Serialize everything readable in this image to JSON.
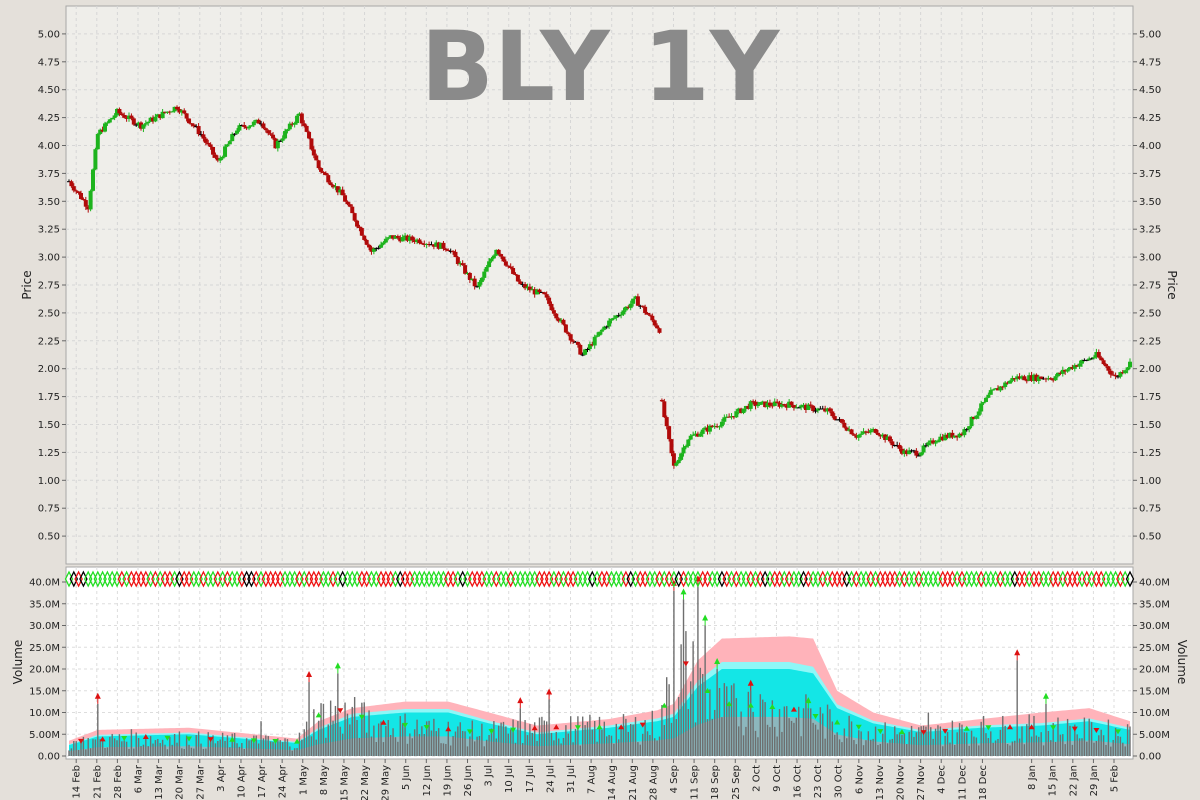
{
  "chart_data": {
    "type": "candlestick",
    "title": "BLY 1Y",
    "price_panel": {
      "ylabel": "Price",
      "ylim": [
        0.25,
        5.25
      ],
      "yticks": [
        "0.50",
        "0.75",
        "1.00",
        "1.25",
        "1.50",
        "1.75",
        "2.00",
        "2.25",
        "2.50",
        "2.75",
        "3.00",
        "3.25",
        "3.50",
        "3.75",
        "4.00",
        "4.25",
        "4.50",
        "4.75",
        "5.00"
      ],
      "grid": true
    },
    "volume_panel": {
      "ylabel": "Volume",
      "ylim": [
        0,
        40
      ],
      "yticks": [
        "0.00",
        "5.00M",
        "10.0M",
        "15.0M",
        "20.0M",
        "25.0M",
        "30.0M",
        "35.0M",
        "40.0M"
      ],
      "grid": true
    },
    "xticks": [
      "14 Feb",
      "21 Feb",
      "28 Feb",
      "6 Mar",
      "13 Mar",
      "20 Mar",
      "27 Mar",
      "3 Apr",
      "10 Apr",
      "17 Apr",
      "24 Apr",
      "1 May",
      "8 May",
      "15 May",
      "22 May",
      "29 May",
      "5 Jun",
      "12 Jun",
      "19 Jun",
      "26 Jun",
      "3 Jul",
      "10 Jul",
      "17 Jul",
      "24 Jul",
      "31 Jul",
      "7 Aug",
      "14 Aug",
      "21 Aug",
      "28 Aug",
      "4 Sep",
      "11 Sep",
      "18 Sep",
      "25 Sep",
      "2 Oct",
      "9 Oct",
      "16 Oct",
      "23 Oct",
      "30 Oct",
      "6 Nov",
      "13 Nov",
      "20 Nov",
      "27 Nov",
      "4 Dec",
      "11 Dec",
      "18 Dec",
      "8 Jan",
      "15 Jan",
      "22 Jan",
      "29 Jan",
      "5 Feb"
    ],
    "price_keypoints": [
      [
        0,
        3.68
      ],
      [
        8,
        3.45
      ],
      [
        12,
        4.1
      ],
      [
        20,
        4.3
      ],
      [
        30,
        4.18
      ],
      [
        45,
        4.35
      ],
      [
        55,
        4.1
      ],
      [
        62,
        3.85
      ],
      [
        70,
        4.15
      ],
      [
        80,
        4.22
      ],
      [
        86,
        4.0
      ],
      [
        96,
        4.28
      ],
      [
        104,
        3.8
      ],
      [
        114,
        3.55
      ],
      [
        126,
        3.05
      ],
      [
        134,
        3.18
      ],
      [
        146,
        3.15
      ],
      [
        158,
        3.08
      ],
      [
        170,
        2.72
      ],
      [
        178,
        3.08
      ],
      [
        188,
        2.75
      ],
      [
        198,
        2.65
      ],
      [
        206,
        2.38
      ],
      [
        214,
        2.12
      ],
      [
        224,
        2.4
      ],
      [
        236,
        2.62
      ],
      [
        246,
        2.35
      ],
      [
        247,
        1.68
      ],
      [
        252,
        1.12
      ],
      [
        258,
        1.38
      ],
      [
        270,
        1.5
      ],
      [
        284,
        1.68
      ],
      [
        300,
        1.68
      ],
      [
        316,
        1.62
      ],
      [
        328,
        1.4
      ],
      [
        336,
        1.45
      ],
      [
        348,
        1.25
      ],
      [
        354,
        1.25
      ],
      [
        362,
        1.38
      ],
      [
        372,
        1.42
      ],
      [
        384,
        1.78
      ],
      [
        394,
        1.92
      ],
      [
        410,
        1.92
      ],
      [
        418,
        2.02
      ],
      [
        428,
        2.12
      ],
      [
        436,
        1.92
      ],
      [
        442,
        2.05
      ]
    ],
    "volume_keypoints": [
      [
        0,
        3
      ],
      [
        30,
        4
      ],
      [
        60,
        3.5
      ],
      [
        95,
        3
      ],
      [
        102,
        8
      ],
      [
        110,
        10
      ],
      [
        130,
        7
      ],
      [
        150,
        6
      ],
      [
        170,
        5
      ],
      [
        200,
        6
      ],
      [
        230,
        6
      ],
      [
        246,
        7
      ],
      [
        250,
        14
      ],
      [
        256,
        20
      ],
      [
        270,
        11
      ],
      [
        300,
        10
      ],
      [
        320,
        7
      ],
      [
        340,
        5
      ],
      [
        360,
        5
      ],
      [
        380,
        6
      ],
      [
        410,
        6
      ],
      [
        442,
        5
      ]
    ],
    "volume_spikes": [
      [
        12,
        12
      ],
      [
        80,
        8
      ],
      [
        100,
        17
      ],
      [
        112,
        19
      ],
      [
        127,
        7
      ],
      [
        188,
        11
      ],
      [
        200,
        13
      ],
      [
        252,
        38
      ],
      [
        256,
        36
      ],
      [
        262,
        39
      ],
      [
        265,
        30
      ],
      [
        270,
        20
      ],
      [
        284,
        15
      ],
      [
        308,
        11
      ],
      [
        358,
        10
      ],
      [
        395,
        22
      ],
      [
        407,
        12
      ]
    ],
    "ma_bands_volume_outer": [
      [
        0,
        3.5
      ],
      [
        12,
        6
      ],
      [
        50,
        6.5
      ],
      [
        95,
        4
      ],
      [
        104,
        8
      ],
      [
        118,
        11
      ],
      [
        140,
        12.5
      ],
      [
        158,
        12.5
      ],
      [
        175,
        10
      ],
      [
        195,
        7
      ],
      [
        225,
        8.5
      ],
      [
        245,
        10.5
      ],
      [
        252,
        12
      ],
      [
        262,
        22
      ],
      [
        272,
        27
      ],
      [
        300,
        27.5
      ],
      [
        310,
        27
      ],
      [
        320,
        15
      ],
      [
        335,
        10
      ],
      [
        355,
        7
      ],
      [
        380,
        8.5
      ],
      [
        405,
        10
      ],
      [
        425,
        11
      ],
      [
        442,
        8
      ]
    ],
    "ma_bands_volume_inner": [
      [
        0,
        2.5
      ],
      [
        12,
        4.5
      ],
      [
        50,
        5
      ],
      [
        95,
        3
      ],
      [
        104,
        6
      ],
      [
        118,
        9
      ],
      [
        140,
        10
      ],
      [
        158,
        10
      ],
      [
        175,
        7.5
      ],
      [
        195,
        5
      ],
      [
        225,
        6.5
      ],
      [
        245,
        8
      ],
      [
        252,
        9
      ],
      [
        262,
        16
      ],
      [
        272,
        20
      ],
      [
        300,
        20
      ],
      [
        310,
        19
      ],
      [
        320,
        11
      ],
      [
        335,
        7.5
      ],
      [
        355,
        5.5
      ],
      [
        380,
        6.5
      ],
      [
        405,
        7
      ],
      [
        425,
        8
      ],
      [
        442,
        6
      ]
    ]
  }
}
